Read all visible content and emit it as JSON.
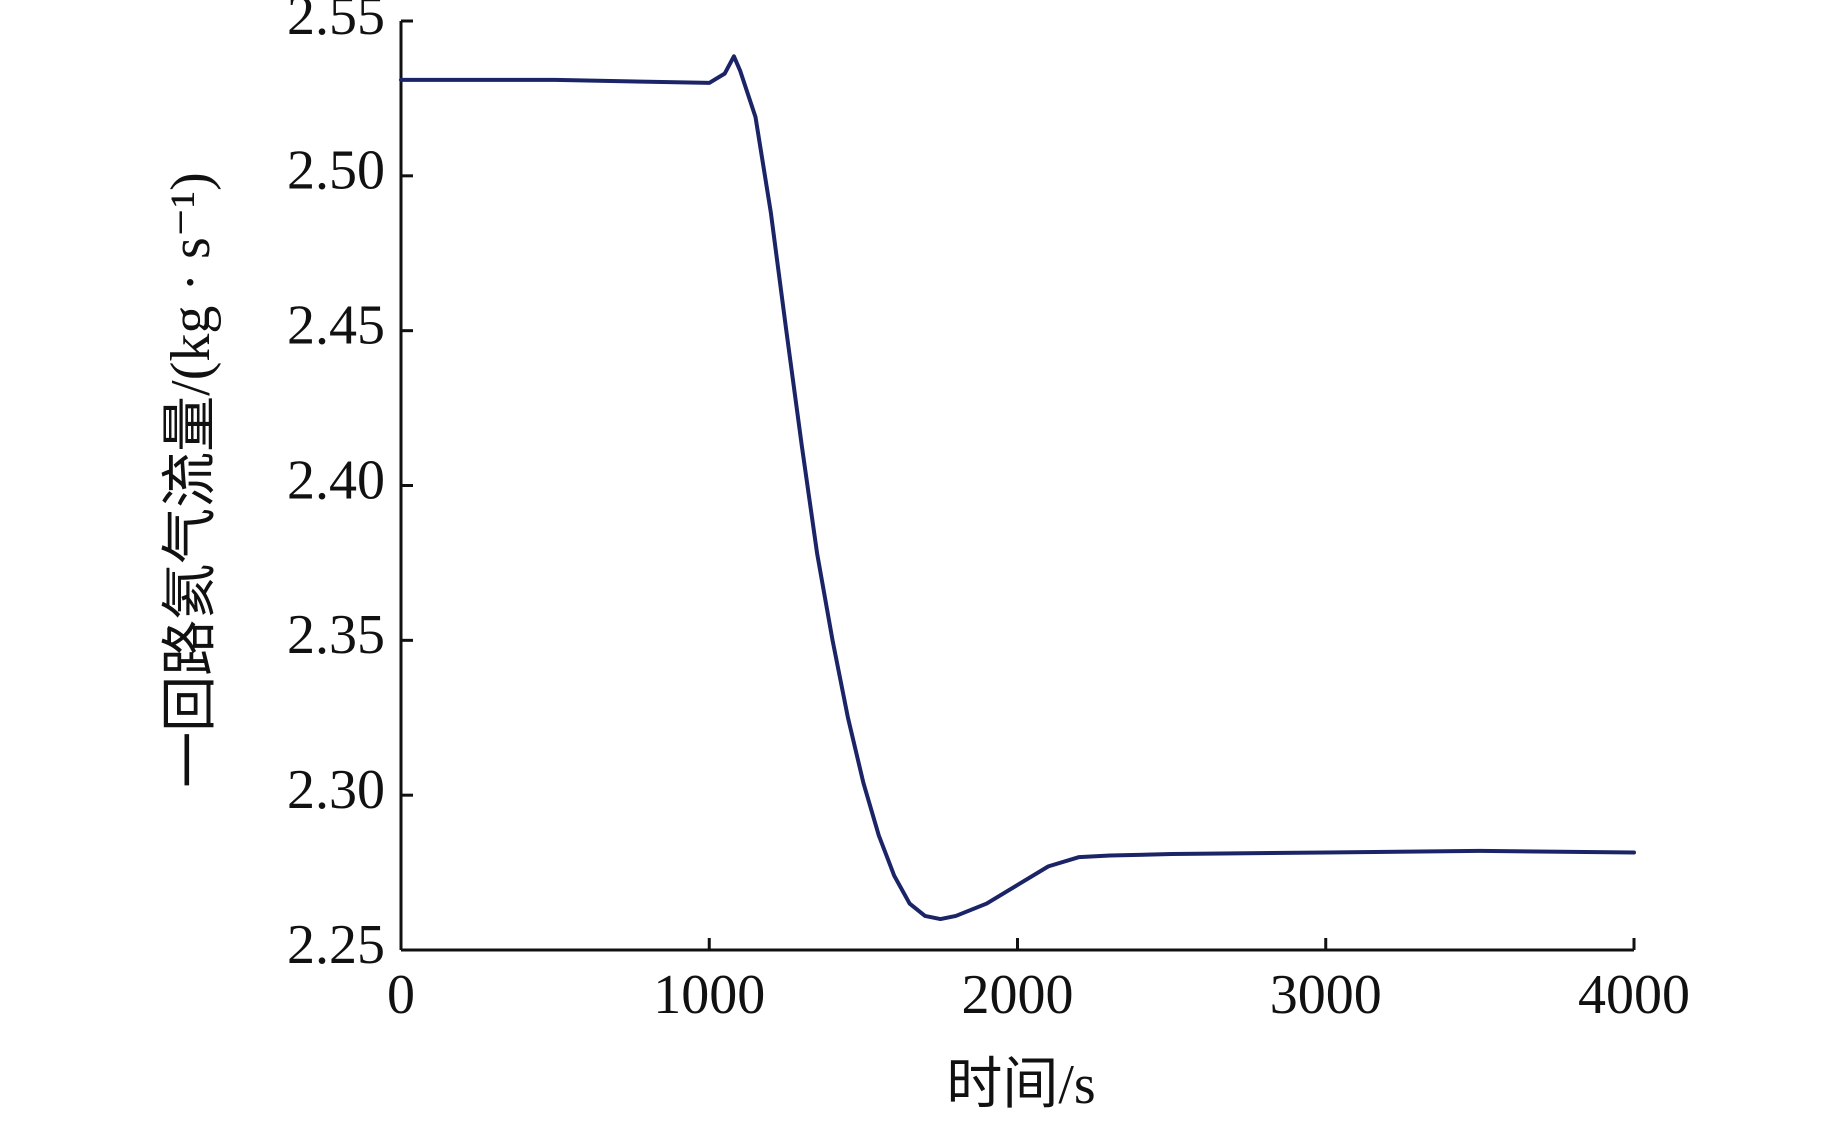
{
  "chart_data": {
    "type": "line",
    "xlabel": "时间/s",
    "ylabel": "一回路氦气流量/(kg · s⁻¹)",
    "x": [
      0,
      500,
      1000,
      1050,
      1080,
      1100,
      1150,
      1200,
      1250,
      1300,
      1350,
      1400,
      1450,
      1500,
      1550,
      1600,
      1650,
      1700,
      1750,
      1800,
      1900,
      2000,
      2100,
      2200,
      2300,
      2500,
      3000,
      3500,
      4000
    ],
    "series": [
      {
        "color": "#1b2466",
        "values": [
          2.531,
          2.531,
          2.53,
          2.533,
          2.5386,
          2.534,
          2.519,
          2.488,
          2.45,
          2.413,
          2.378,
          2.35,
          2.325,
          2.304,
          2.287,
          2.274,
          2.265,
          2.261,
          2.26,
          2.261,
          2.265,
          2.271,
          2.277,
          2.28,
          2.2805,
          2.281,
          2.2815,
          2.282,
          2.2815
        ]
      }
    ],
    "xlim": [
      0,
      4000
    ],
    "xticks": [
      0,
      1000,
      2000,
      3000,
      4000
    ],
    "ylim": [
      2.25,
      2.55
    ],
    "yticks": [
      {
        "value": 2.25,
        "label": "2.25"
      },
      {
        "value": 2.3,
        "label": "2.30"
      },
      2.35,
      {
        "value": 2.4,
        "label": "2.40"
      },
      2.45,
      {
        "value": 2.5,
        "label": "2.50"
      },
      2.55
    ]
  }
}
